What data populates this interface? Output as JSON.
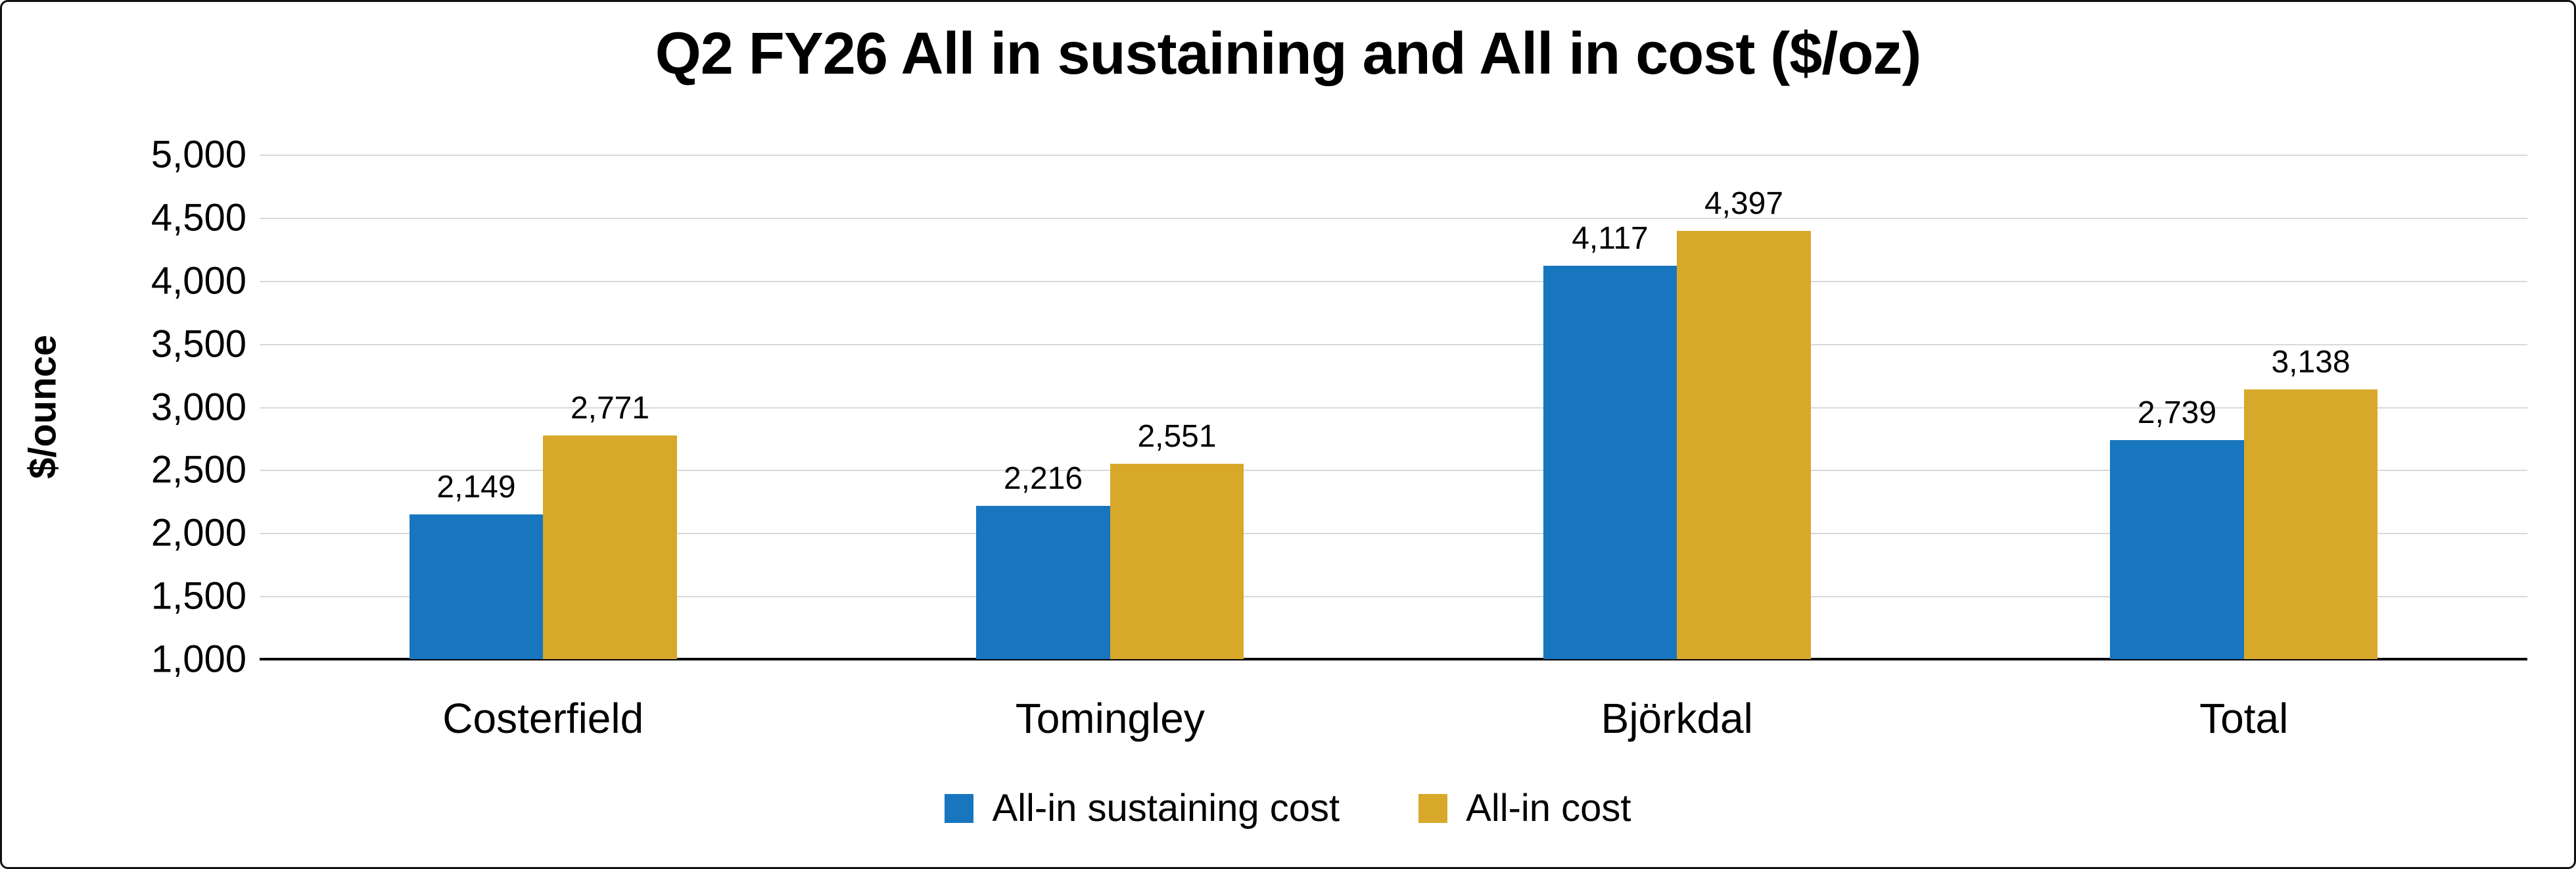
{
  "title": "Q2 FY26 All in sustaining and All in cost ($/oz)",
  "chart_data": {
    "type": "bar",
    "title": "Q2 FY26 All in sustaining and All in cost ($/oz)",
    "categories": [
      "Costerfield",
      "Tomingley",
      "Björkdal",
      "Total"
    ],
    "series": [
      {
        "name": "All-in sustaining cost",
        "color": "#1776be",
        "values": [
          2149,
          2216,
          4117,
          2739
        ],
        "labels": [
          "2,149",
          "2,216",
          "4,117",
          "2,739"
        ]
      },
      {
        "name": "All-in cost",
        "color": "#d7a829",
        "values": [
          2771,
          2551,
          4397,
          3138
        ],
        "labels": [
          "2,771",
          "2,551",
          "4,397",
          "3,138"
        ]
      }
    ],
    "xlabel": "",
    "ylabel": "$/ounce",
    "ylim": [
      1000,
      5000
    ],
    "yticks": [
      {
        "v": 5000,
        "label": "5,000"
      },
      {
        "v": 4500,
        "label": "4,500"
      },
      {
        "v": 4000,
        "label": "4,000"
      },
      {
        "v": 3500,
        "label": "3,500"
      },
      {
        "v": 3000,
        "label": "3,000"
      },
      {
        "v": 2500,
        "label": "2,500"
      },
      {
        "v": 2000,
        "label": "2,000"
      },
      {
        "v": 1500,
        "label": "1,500"
      },
      {
        "v": 1000,
        "label": "1,000"
      }
    ],
    "grid": true,
    "gridline_color": "#d9d9d9",
    "legend_position": "bottom"
  }
}
